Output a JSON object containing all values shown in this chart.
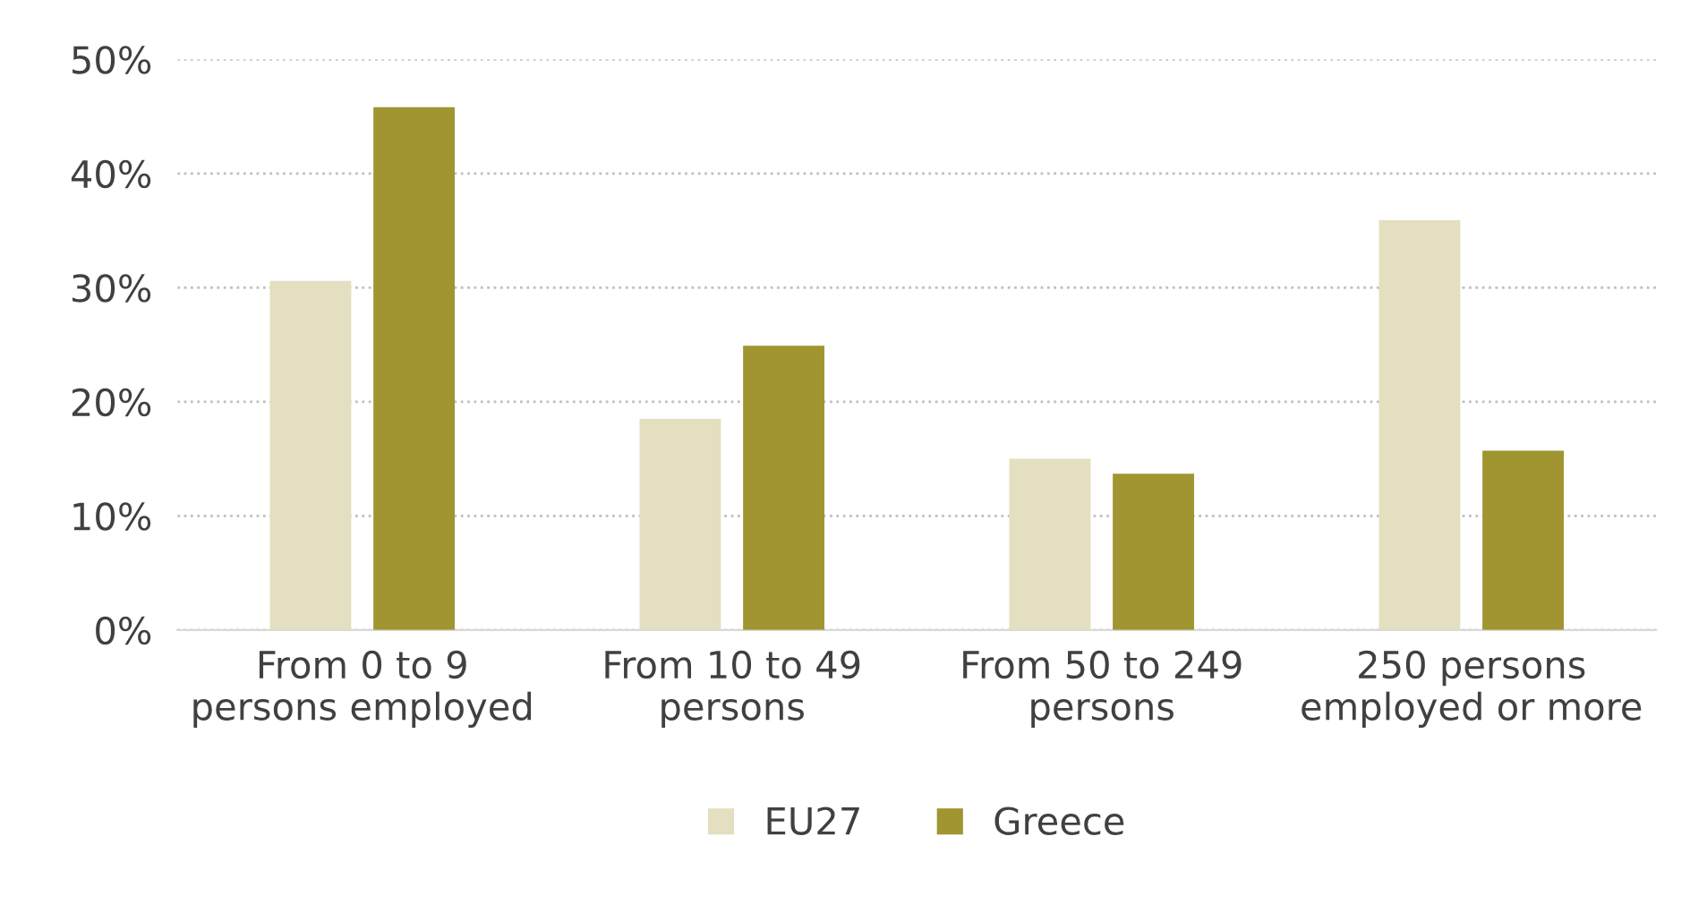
{
  "chart_data": {
    "type": "bar",
    "categories": [
      "From 0 to 9\npersons employed",
      "From 10 to 49\npersons",
      "From 50 to 249\npersons",
      "250 persons\nemployed or more"
    ],
    "series": [
      {
        "name": "EU27",
        "color": "#e3dfc0",
        "values": [
          30.6,
          18.5,
          15.0,
          35.9
        ]
      },
      {
        "name": "Greece",
        "color": "#a09530",
        "values": [
          45.8,
          24.9,
          13.7,
          15.7
        ]
      }
    ],
    "ylim": [
      0,
      50
    ],
    "yticks": [
      {
        "value": 0,
        "label": "0%"
      },
      {
        "value": 10,
        "label": "10%"
      },
      {
        "value": 20,
        "label": "20%"
      },
      {
        "value": 30,
        "label": "30%"
      },
      {
        "value": 40,
        "label": "40%"
      },
      {
        "value": 50,
        "label": "50%"
      }
    ],
    "grid": "y",
    "legend": "bottom"
  }
}
